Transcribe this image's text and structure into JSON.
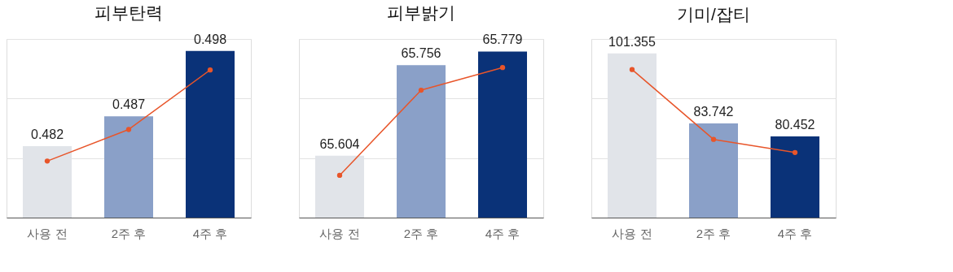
{
  "chart_data": [
    {
      "type": "bar",
      "title": "피부탄력",
      "categories": [
        "사용 전",
        "2주 후",
        "4주 후"
      ],
      "ylim": [
        0.47,
        0.5
      ],
      "yticks": [
        {
          "value": 0.48,
          "label": null
        },
        {
          "value": 0.49,
          "label": null
        },
        {
          "value": 0.5,
          "label": null
        }
      ],
      "grid": "y",
      "series": [
        {
          "colors": [
            "#e1e4e9",
            "#8aa0c8",
            "#0a3278"
          ],
          "values": [
            0.482,
            0.487,
            0.498
          ],
          "value_labels": [
            "0.482",
            "0.487",
            "0.498"
          ]
        },
        {
          "type": "line",
          "color": "#e8552a",
          "marker": "circle",
          "values": [
            0.4795,
            0.4848,
            0.4948
          ]
        }
      ]
    },
    {
      "type": "bar",
      "title": "피부밝기",
      "categories": [
        "사용 전",
        "2주 후",
        "4주 후"
      ],
      "ylim": [
        65.5,
        65.8
      ],
      "yticks": [
        {
          "value": 65.6,
          "label": null
        },
        {
          "value": 65.7,
          "label": null
        },
        {
          "value": 65.8,
          "label": null
        }
      ],
      "grid": "y",
      "series": [
        {
          "colors": [
            "#e1e4e9",
            "#8aa0c8",
            "#0a3278"
          ],
          "values": [
            65.604,
            65.756,
            65.779
          ],
          "value_labels": [
            "65.604",
            "65.756",
            "65.779"
          ]
        },
        {
          "type": "line",
          "color": "#e8552a",
          "marker": "circle",
          "values": [
            65.571,
            65.714,
            65.752
          ]
        }
      ]
    },
    {
      "type": "bar",
      "title": "기미/잡티",
      "categories": [
        "사용 전",
        "2주 후",
        "4주 후"
      ],
      "ylim": [
        60,
        105
      ],
      "yticks": [
        {
          "value": 75,
          "label": null
        },
        {
          "value": 90,
          "label": null
        },
        {
          "value": 105,
          "label": null
        }
      ],
      "grid": "y",
      "series": [
        {
          "colors": [
            "#e1e4e9",
            "#8aa0c8",
            "#0a3278"
          ],
          "values": [
            101.355,
            83.742,
            80.452
          ],
          "value_labels": [
            "101.355",
            "83.742",
            "80.452"
          ]
        },
        {
          "type": "line",
          "color": "#e8552a",
          "marker": "circle",
          "values": [
            97.3,
            79.7,
            76.4
          ]
        }
      ]
    }
  ]
}
